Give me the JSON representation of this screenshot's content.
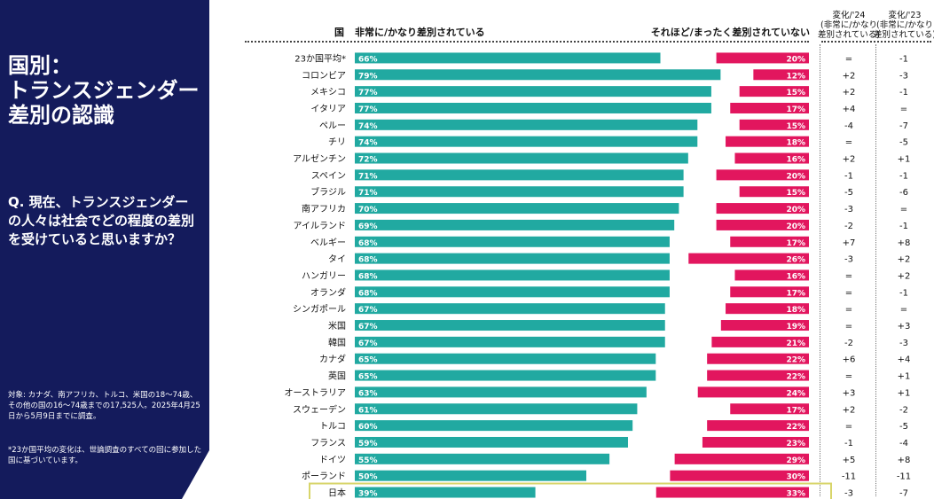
{
  "sidebar": {
    "title": "国別：\nトランスジェンダー\n差別の認識",
    "question": "Q. 現在、トランスジェンダーの人々は社会でどの程度の差別を受けていると思いますか？",
    "note1": "対象: カナダ、南アフリカ、トルコ、米国の18〜74歳、その他の国の16〜74歳までの17,525人。2025年4月25日から5月9日までに調査。",
    "note2": "*23か国平均の変化は、世論調査のすべての回に参加した国に基づいています。"
  },
  "headers": {
    "country": "国",
    "left": "非常に/かなり差別されている",
    "right": "それほど/まったく差別されていない",
    "change24": "変化/'24\n(非常に/かなり\n差別されている)",
    "change23": "変化/'23\n(非常に/かなり\n差別されている)"
  },
  "colors": {
    "sidebar": "#141b5c",
    "teal": "#21a9a1",
    "pink": "#e2165e",
    "highlight": "#d8d56a"
  },
  "chart_data": {
    "type": "bar",
    "categories": [
      "23か国平均*",
      "コロンビア",
      "メキシコ",
      "イタリア",
      "ペルー",
      "チリ",
      "アルゼンチン",
      "スペイン",
      "ブラジル",
      "南アフリカ",
      "アイルランド",
      "ベルギー",
      "タイ",
      "ハンガリー",
      "オランダ",
      "シンガポール",
      "米国",
      "韓国",
      "カナダ",
      "英国",
      "オーストラリア",
      "スウェーデン",
      "トルコ",
      "フランス",
      "ドイツ",
      "ポーランド",
      "日本"
    ],
    "series": [
      {
        "name": "非常に/かなり差別されている",
        "values": [
          66,
          79,
          77,
          77,
          74,
          74,
          72,
          71,
          71,
          70,
          69,
          68,
          68,
          68,
          68,
          67,
          67,
          67,
          65,
          65,
          63,
          61,
          60,
          59,
          55,
          50,
          39
        ]
      },
      {
        "name": "それほど/まったく差別されていない",
        "values": [
          20,
          12,
          15,
          17,
          15,
          18,
          16,
          20,
          15,
          20,
          20,
          17,
          26,
          16,
          17,
          18,
          19,
          21,
          22,
          22,
          24,
          17,
          22,
          23,
          29,
          30,
          33
        ]
      }
    ],
    "change_24": [
      "=",
      "+2",
      "+2",
      "+4",
      "-4",
      "=",
      "+2",
      "-1",
      "-5",
      "-3",
      "-2",
      "+7",
      "-3",
      "=",
      "=",
      "=",
      "=",
      "-2",
      "+6",
      "=",
      "+3",
      "+2",
      "=",
      "-1",
      "+5",
      "-11",
      "-3"
    ],
    "change_23": [
      "-1",
      "-3",
      "-1",
      "=",
      "-7",
      "-5",
      "+1",
      "-1",
      "-6",
      "=",
      "-1",
      "+8",
      "+2",
      "+2",
      "-1",
      "=",
      "+3",
      "-3",
      "+4",
      "+1",
      "+1",
      "-2",
      "-5",
      "-4",
      "+8",
      "-11",
      "-7"
    ],
    "value_suffix": "%",
    "highlight_category": "日本"
  }
}
